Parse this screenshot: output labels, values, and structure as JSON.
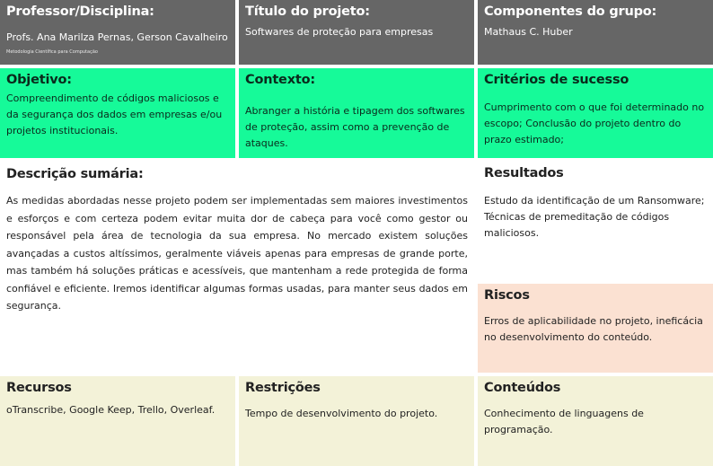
{
  "professor": {
    "title": "Professor/Disciplina:",
    "names": "Profs. Ana Marilza Pernas, Gerson Cavalheiro",
    "discipline": "Metodologia Científica para Computação"
  },
  "titulo": {
    "title": "Título do projeto:",
    "text": "Softwares de proteção para empresas"
  },
  "componentes": {
    "title": "Componentes do grupo:",
    "text": "Mathaus C. Huber"
  },
  "objetivo": {
    "title": "Objetivo:",
    "text": "Compreendimento de códigos maliciosos e da segurança dos dados em empresas e/ou projetos institucionais."
  },
  "contexto": {
    "title": "Contexto:",
    "text": "Abranger a história e tipagem dos softwares de proteção, assim como a prevenção de ataques."
  },
  "criterios": {
    "title": "Critérios de sucesso",
    "text": "Cumprimento com o que foi determinado no escopo; Conclusão do projeto dentro do prazo estimado;"
  },
  "descricao": {
    "title": "Descrição sumária:",
    "text": "As medidas abordadas nesse projeto podem ser implementadas sem maiores investimentos e esforços e com certeza podem evitar muita dor de cabeça para você como gestor ou responsável pela área de tecnologia da sua empresa.  No mercado existem soluções avançadas a custos altíssimos, geralmente viáveis apenas para empresas de grande porte, mas também há soluções práticas e acessíveis, que mantenham a rede protegida de forma confiável e eficiente.  Iremos identificar algumas formas usadas, para manter seus dados em segurança."
  },
  "resultados": {
    "title": "Resultados",
    "text": "Estudo da identificação de um Ransomware; Técnicas de premeditação de códigos maliciosos."
  },
  "riscos": {
    "title": "Riscos",
    "text": "Erros de aplicabilidade no projeto, ineficácia no desenvolvimento do conteúdo."
  },
  "recursos": {
    "title": "Recursos",
    "text": "oTranscribe, Google Keep, Trello, Overleaf."
  },
  "restricoes": {
    "title": "Restrições",
    "text": "Tempo de desenvolvimento do projeto."
  },
  "conteudos": {
    "title": "Conteúdos",
    "text": "Conhecimento de linguagens de programação."
  },
  "colors": {
    "header": "#666666",
    "green": "#16fa99",
    "risk": "#fbe1d2",
    "footer": "#f3f2d8"
  }
}
